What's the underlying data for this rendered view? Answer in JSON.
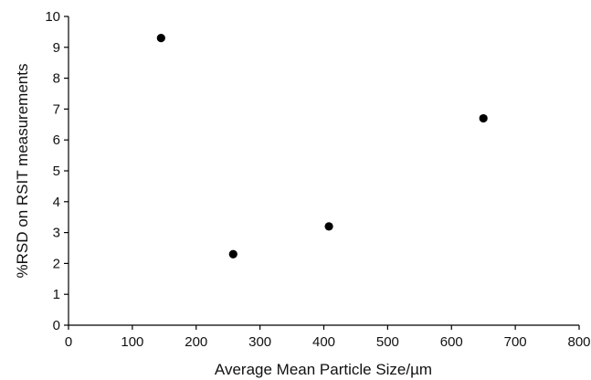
{
  "chart_data": {
    "type": "scatter",
    "title": "",
    "xlabel": "Average Mean Particle Size/µm",
    "ylabel": "%RSD on RSIT measurements",
    "xlim": [
      0,
      800
    ],
    "ylim": [
      0,
      10
    ],
    "x_ticks": [
      "0",
      "100",
      "200",
      "300",
      "400",
      "500",
      "600",
      "700",
      "800"
    ],
    "y_ticks": [
      "0",
      "1",
      "2",
      "3",
      "4",
      "5",
      "6",
      "7",
      "8",
      "9",
      "10"
    ],
    "grid": false,
    "legend": "none",
    "series": [
      {
        "points": [
          {
            "x": 145,
            "y": 9.3
          },
          {
            "x": 258,
            "y": 2.3
          },
          {
            "x": 408,
            "y": 3.2
          },
          {
            "x": 650,
            "y": 6.7
          }
        ]
      }
    ],
    "colors": {
      "marker": "#000000",
      "axis": "#000000",
      "text": "#111111"
    }
  }
}
